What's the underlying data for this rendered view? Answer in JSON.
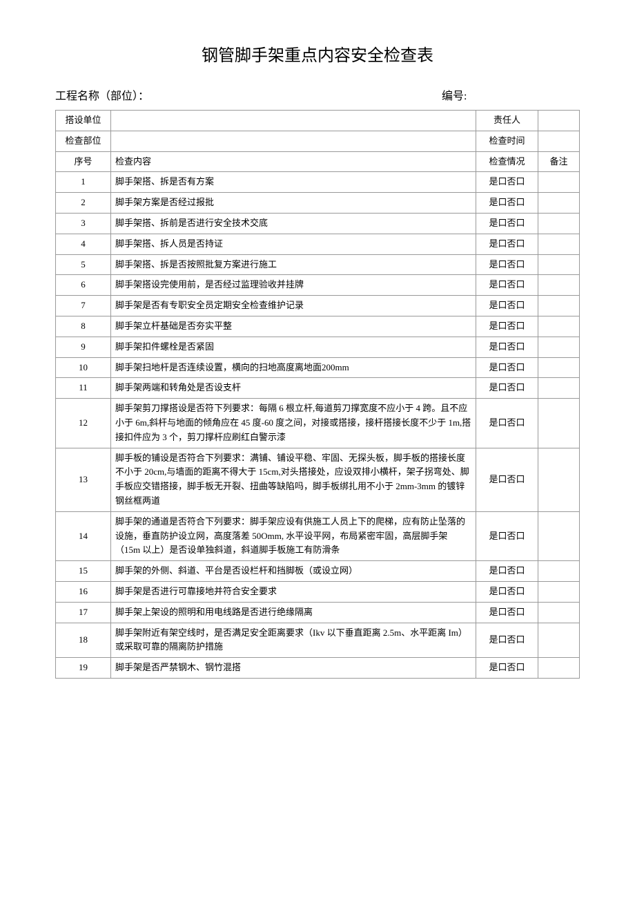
{
  "title": "钢管脚手架重点内容安全检查表",
  "header": {
    "left_label": "工程名称（部位）：",
    "right_label": "编号:"
  },
  "meta": {
    "unit_label": "搭设单位",
    "unit_value": "",
    "responsible_label": "责任人",
    "responsible_value": "",
    "part_label": "检查部位",
    "part_value": "",
    "time_label": "检查时间",
    "time_value": ""
  },
  "columns": {
    "seq": "序号",
    "content": "检查内容",
    "status": "检查情况",
    "remark": "备注"
  },
  "yes_no": "是口否口",
  "rows": [
    {
      "seq": "1",
      "content": "脚手架搭、拆是否有方案"
    },
    {
      "seq": "2",
      "content": "脚手架方案是否经过报批"
    },
    {
      "seq": "3",
      "content": "脚手架搭、拆前是否进行安全技术交底"
    },
    {
      "seq": "4",
      "content": "脚手架搭、拆人员是否持证"
    },
    {
      "seq": "5",
      "content": "脚手架搭、拆是否按照批复方案进行施工"
    },
    {
      "seq": "6",
      "content": "脚手架搭设完使用前，是否经过监理验收并挂牌"
    },
    {
      "seq": "7",
      "content": "脚手架是否有专职安全员定期安全检查维护记录"
    },
    {
      "seq": "8",
      "content": "脚手架立杆基础是否夯实平整"
    },
    {
      "seq": "9",
      "content": "脚手架扣件螺栓是否紧固"
    },
    {
      "seq": "10",
      "content": "脚手架扫地杆是否连续设置，横向的扫地高度离地面200mm"
    },
    {
      "seq": "11",
      "content": "脚手架两端和转角处是否设支杆"
    },
    {
      "seq": "12",
      "content": "脚手架剪刀撑搭设是否符下列要求：每隔 6 根立杆,每道剪刀撑宽度不应小于 4 跨。且不应小于 6m,斜杆与地面的倾角应在 45 度-60 度之间，对接或搭接，接杆搭接长度不少于 1m,搭接扣件应为 3 个，剪刀撑杆应刷红白警示漆"
    },
    {
      "seq": "13",
      "content": "脚手板的铺设是否符合下列要求：满铺、铺设平稳、牢固、无探头板，脚手板的搭接长度不小于 20cm,与墙面的距离不得大于 15cm,对头搭接处，应设双排小横杆，架子拐弯处、脚手板应交错搭接，脚手板无开裂、扭曲等缺陷吗，脚手板绑扎用不小于 2mm-3mm 的镀锌钢丝框两道"
    },
    {
      "seq": "14",
      "content": "脚手架的通道是否符合下列要求：脚手架应设有供施工人员上下的爬梯，应有防止坠落的设施，垂直防护设立网，高度落差 50Omm, 水平设平网，布局紧密牢固，高层脚手架（15m 以上）是否设单独斜道，斜道脚手板施工有防滑条"
    },
    {
      "seq": "15",
      "content": "脚手架的外侧、斜道、平台是否设栏杆和挡脚板（或设立网）"
    },
    {
      "seq": "16",
      "content": "脚手架是否进行可靠接地并符合安全要求"
    },
    {
      "seq": "17",
      "content": "脚手架上架设的照明和用电线路是否进行绝缘隔离"
    },
    {
      "seq": "18",
      "content": "脚手架附近有架空线时，是否满足安全距离要求（Ikv 以下垂直距离 2.5m、水平距离 Im）或采取可靠的隔离防护措施"
    },
    {
      "seq": "19",
      "content": "脚手架是否严禁钢木、钢竹混搭"
    }
  ]
}
